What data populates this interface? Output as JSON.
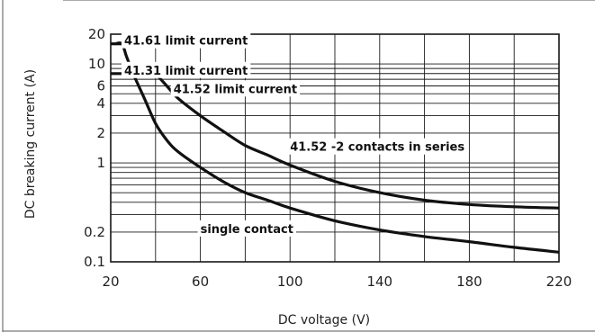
{
  "chart_data": {
    "type": "line",
    "title_fragment": "",
    "xlabel": "DC voltage (V)",
    "ylabel": "DC breaking current (A)",
    "x_scale": "linear",
    "y_scale": "log",
    "xlim": [
      20,
      220
    ],
    "ylim": [
      0.1,
      20
    ],
    "grid": true,
    "x_ticks": [
      {
        "value": 20,
        "label": "20"
      },
      {
        "value": 60,
        "label": "60"
      },
      {
        "value": 100,
        "label": "100"
      },
      {
        "value": 140,
        "label": "140"
      },
      {
        "value": 180,
        "label": "180"
      },
      {
        "value": 220,
        "label": "220"
      }
    ],
    "y_ticks": [
      {
        "value": 20,
        "label": "20"
      },
      {
        "value": 10,
        "label": "10"
      },
      {
        "value": 6,
        "label": "6"
      },
      {
        "value": 4,
        "label": "4"
      },
      {
        "value": 2,
        "label": "2"
      },
      {
        "value": 1,
        "label": "1"
      },
      {
        "value": 0.2,
        "label": "0.2"
      },
      {
        "value": 0.1,
        "label": "0.1"
      }
    ],
    "series": [
      {
        "key": "single",
        "x": [
          22,
          25,
          27,
          30,
          35,
          40,
          45,
          50,
          60,
          70,
          80,
          90,
          100,
          120,
          140,
          160,
          180,
          200,
          220
        ],
        "y": [
          16,
          16,
          12,
          8,
          4.5,
          2.5,
          1.7,
          1.3,
          0.9,
          0.65,
          0.5,
          0.42,
          0.35,
          0.26,
          0.21,
          0.18,
          0.16,
          0.14,
          0.125
        ]
      },
      {
        "key": "series2",
        "x": [
          40,
          45,
          50,
          60,
          70,
          80,
          90,
          100,
          120,
          140,
          160,
          180,
          200,
          220
        ],
        "y": [
          8,
          6,
          4.5,
          3,
          2.1,
          1.5,
          1.2,
          0.95,
          0.65,
          0.5,
          0.42,
          0.38,
          0.36,
          0.35
        ]
      },
      {
        "key": "limit_41_61",
        "x": [
          20,
          25
        ],
        "y": [
          16,
          16
        ]
      },
      {
        "key": "limit_41_31",
        "x": [
          20,
          30
        ],
        "y": [
          8,
          8
        ]
      }
    ],
    "annotations": [
      {
        "key": "a1",
        "text": "41.61 limit current",
        "x": 26,
        "y": 16
      },
      {
        "key": "a2",
        "text": "41.31 limit current",
        "x": 26,
        "y": 8
      },
      {
        "key": "a3",
        "text": "41.52 limit current",
        "x": 48,
        "y": 5.2
      },
      {
        "key": "a4",
        "text": "41.52 -2 contacts in series",
        "x": 100,
        "y": 1.35
      },
      {
        "key": "a5",
        "text": "single contact",
        "x": 60,
        "y": 0.2
      }
    ]
  }
}
